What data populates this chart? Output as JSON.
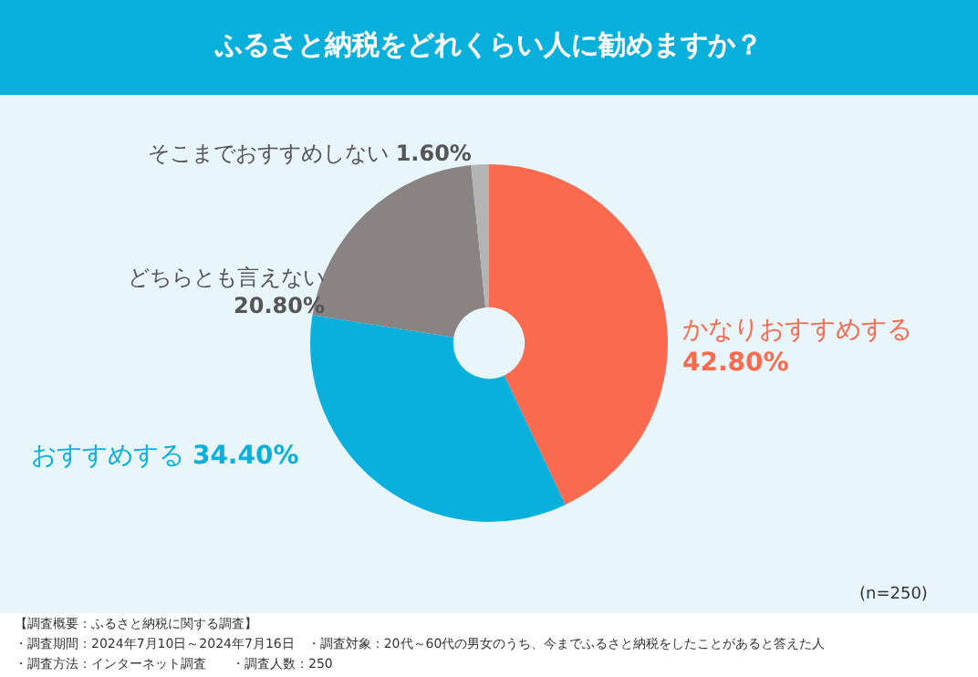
{
  "chart_data": {
    "type": "donut",
    "title": "ふるさと納税をどれくらい人に勧めますか？",
    "categories": [
      "かなりおすすめする",
      "おすすめする",
      "どちらとも言えない",
      "そこまでおすすめしない"
    ],
    "values": [
      42.8,
      34.4,
      20.8,
      1.6
    ],
    "value_labels": [
      "42.80%",
      "34.40%",
      "20.80%",
      "1.60%"
    ],
    "colors": [
      "#f96a4e",
      "#0ab0dc",
      "#8a8384",
      "#b4b4b4"
    ],
    "legend": false,
    "annotations": [
      "(n=250)",
      "【調査概要：ふるさと納税に関する調査】",
      "・調査期間：2024年7月10日～2024年7月16日　・調査対象：20代～60代の男女のうち、今までふるさと納税をしたことがあると答えた人",
      "・調査方法：インターネット調査　　・調査人数：250"
    ]
  }
}
